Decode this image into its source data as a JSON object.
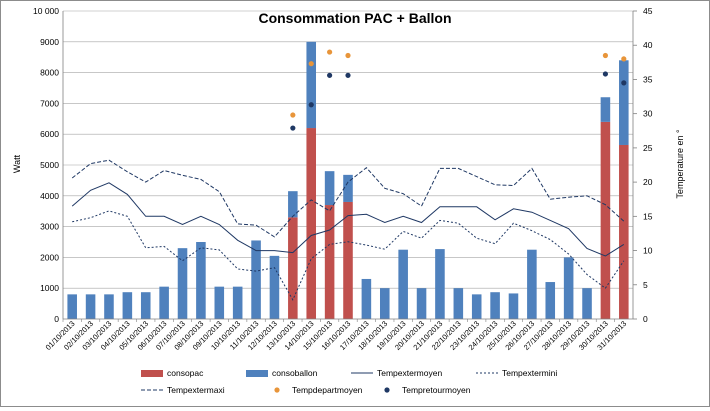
{
  "chart_data": {
    "type": "bar",
    "title": "Consommation PAC + Ballon",
    "ylabel": "Watt",
    "y2label": "Temperature en °",
    "ylim": [
      0,
      10000
    ],
    "y2lim": [
      0,
      45
    ],
    "ytick_labels": [
      "0",
      "1000",
      "2000",
      "3000",
      "4000",
      "5000",
      "6000",
      "7000",
      "8000",
      "9000",
      "10 000"
    ],
    "y2tick_labels": [
      "0",
      "5",
      "10",
      "15",
      "20",
      "25",
      "30",
      "35",
      "40",
      "45"
    ],
    "grid": true,
    "legend_position": "bottom",
    "categories": [
      "01/10/2013",
      "02/10/2013",
      "03/10/2013",
      "04/10/2013",
      "05/10/2013",
      "06/10/2013",
      "07/10/2013",
      "08/10/2013",
      "09/10/2013",
      "10/10/2013",
      "11/10/2013",
      "12/10/2013",
      "13/10/2013",
      "14/10/2013",
      "15/10/2013",
      "16/10/2013",
      "17/10/2013",
      "18/10/2013",
      "19/10/2013",
      "20/10/2013",
      "21/10/2013",
      "22/10/2013",
      "23/10/2013",
      "24/10/2013",
      "25/10/2013",
      "26/10/2013",
      "27/10/2013",
      "28/10/2013",
      "29/10/2013",
      "30/10/2013",
      "31/10/2013"
    ],
    "series": [
      {
        "name": "consopac",
        "kind": "bar",
        "axis": "left",
        "color": "#c0504d",
        "values": [
          0,
          0,
          0,
          0,
          0,
          0,
          0,
          0,
          0,
          0,
          0,
          0,
          3300,
          6200,
          3700,
          3800,
          0,
          0,
          0,
          0,
          0,
          0,
          0,
          0,
          0,
          0,
          0,
          0,
          0,
          6400,
          5650
        ]
      },
      {
        "name": "consoballon",
        "kind": "bar",
        "axis": "left",
        "color": "#4f81bd",
        "values": [
          800,
          800,
          800,
          870,
          870,
          1050,
          2300,
          2500,
          1050,
          1050,
          2550,
          2050,
          850,
          2800,
          1100,
          880,
          1300,
          1000,
          2250,
          1000,
          2270,
          1000,
          800,
          870,
          830,
          2250,
          1200,
          2000,
          1000,
          800,
          2750
        ]
      },
      {
        "name": "Tempextermoyen",
        "kind": "line",
        "axis": "right",
        "color": "#1f3864",
        "dash": "solid",
        "values": [
          16.5,
          18.8,
          19.9,
          18.2,
          15.0,
          15.0,
          13.8,
          15.0,
          13.8,
          11.5,
          10.0,
          10.0,
          9.7,
          12.2,
          13.0,
          15.1,
          15.3,
          14.1,
          15.0,
          14.1,
          16.4,
          16.4,
          16.4,
          14.5,
          16.1,
          15.6,
          14.4,
          13.2,
          10.3,
          9.2,
          10.9
        ]
      },
      {
        "name": "Tempextermini",
        "kind": "line",
        "axis": "right",
        "color": "#1f3864",
        "dash": "2,2",
        "values": [
          14.2,
          14.8,
          15.8,
          15.0,
          10.4,
          10.6,
          8.5,
          10.4,
          10.1,
          7.3,
          7.0,
          7.5,
          2.8,
          8.8,
          10.9,
          11.3,
          10.8,
          10.2,
          12.8,
          11.8,
          14.4,
          14.0,
          11.8,
          11.0,
          14.0,
          12.9,
          11.6,
          9.5,
          6.5,
          4.5,
          8.5
        ]
      },
      {
        "name": "Tempextermaxi",
        "kind": "line",
        "axis": "right",
        "color": "#1f3864",
        "dash": "4,2",
        "values": [
          20.6,
          22.7,
          23.2,
          21.5,
          20.0,
          21.7,
          21.0,
          20.4,
          18.6,
          13.9,
          13.7,
          12.0,
          15.0,
          17.4,
          15.8,
          20.0,
          22.1,
          19.1,
          18.3,
          16.5,
          22.0,
          22.0,
          20.8,
          19.6,
          19.5,
          22.0,
          17.5,
          17.8,
          18.0,
          16.7,
          14.3
        ]
      },
      {
        "name": "Tempdepartmoyen",
        "kind": "scatter",
        "axis": "right",
        "color": "#e8953a",
        "values": [
          null,
          null,
          null,
          null,
          null,
          null,
          null,
          null,
          null,
          null,
          null,
          null,
          29.8,
          37.3,
          39.0,
          38.5,
          null,
          null,
          null,
          null,
          null,
          null,
          null,
          null,
          null,
          null,
          null,
          null,
          null,
          38.5,
          38.0
        ]
      },
      {
        "name": "Tempretourmoyen",
        "kind": "scatter",
        "axis": "right",
        "color": "#1f3864",
        "values": [
          null,
          null,
          null,
          null,
          null,
          null,
          null,
          null,
          null,
          null,
          null,
          null,
          27.9,
          31.3,
          35.6,
          35.6,
          null,
          null,
          null,
          null,
          null,
          null,
          null,
          null,
          null,
          null,
          null,
          null,
          null,
          35.8,
          34.5
        ]
      }
    ]
  }
}
